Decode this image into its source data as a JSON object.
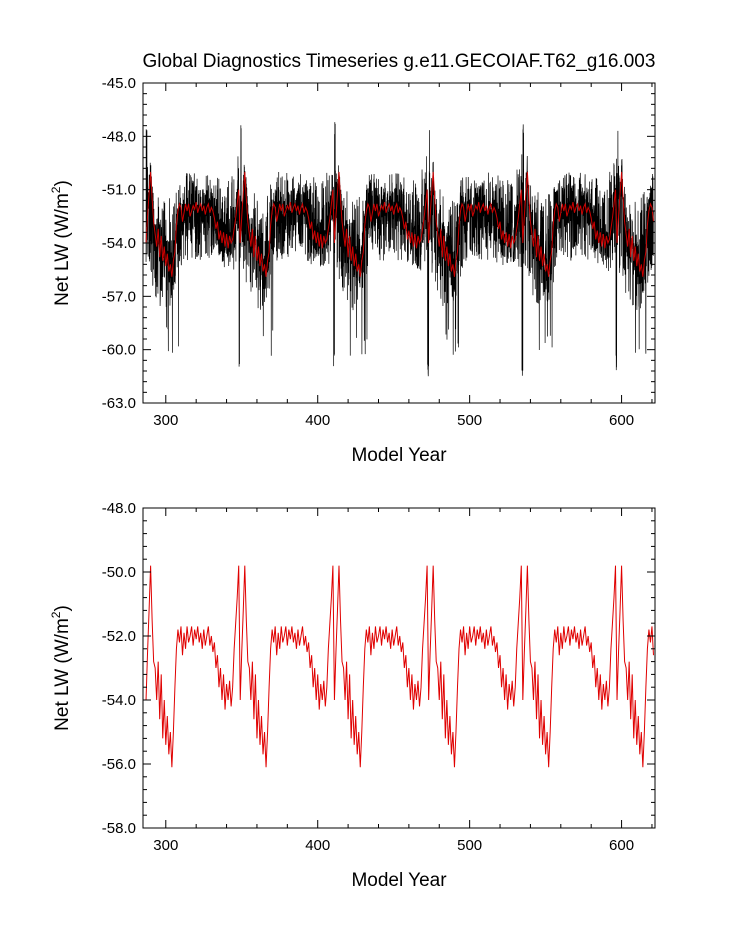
{
  "figure": {
    "title": "Global Diagnostics Timeseries g.e11.GECOIAF.T62_g16.003"
  },
  "chart_data": [
    {
      "type": "line",
      "xlabel": "Model Year",
      "ylabel_main": "Net LW (W/m",
      "ylabel_sup": "2",
      "ylabel_tail": ")",
      "xlim": [
        285,
        622
      ],
      "ylim": [
        -63.0,
        -45.0
      ],
      "xticks": [
        300,
        400,
        500,
        600
      ],
      "xtick_labels": [
        "300",
        "400",
        "500",
        "600"
      ],
      "yticks": [
        -63.0,
        -60.0,
        -57.0,
        -54.0,
        -51.0,
        -48.0,
        -45.0
      ],
      "ytick_labels": [
        "-63.0",
        "-60.0",
        "-57.0",
        "-54.0",
        "-51.0",
        "-48.0",
        "-45.0"
      ],
      "grid": false,
      "colors": {
        "monthly": "#000000",
        "annual": "#cc0000"
      },
      "cycle": {
        "start": 287,
        "length": 62,
        "end": 621
      },
      "monthly_envelope": {
        "note_values": [
          {
            "phase": 0,
            "low": -55.5,
            "high": -49.0
          },
          {
            "phase": 3,
            "low": -56.0,
            "high": -50.5
          },
          {
            "phase": 8,
            "low": -57.5,
            "high": -51.0
          },
          {
            "phase": 15,
            "low": -58.0,
            "high": -51.5
          },
          {
            "phase": 24,
            "low": -55.0,
            "high": -50.0
          },
          {
            "phase": 40,
            "low": -55.0,
            "high": -50.0
          },
          {
            "phase": 55,
            "low": -55.5,
            "high": -50.5
          },
          {
            "phase": 61,
            "low": -56.0,
            "high": -49.0
          }
        ]
      },
      "annual_profile": [
        [
          0,
          -54.0
        ],
        [
          1,
          -52.5
        ],
        [
          2,
          -51.2
        ],
        [
          3,
          -50.0
        ],
        [
          4,
          -51.5
        ],
        [
          5,
          -52.8
        ],
        [
          6,
          -53.5
        ],
        [
          7,
          -54.2
        ],
        [
          8,
          -53.2
        ],
        [
          9,
          -54.8
        ],
        [
          10,
          -53.6
        ],
        [
          11,
          -55.0
        ],
        [
          12,
          -54.2
        ],
        [
          13,
          -55.3
        ],
        [
          14,
          -54.6
        ],
        [
          15,
          -55.6
        ],
        [
          16,
          -55.2
        ],
        [
          17,
          -55.9
        ],
        [
          18,
          -55.0
        ],
        [
          19,
          -54.5
        ],
        [
          20,
          -53.0
        ],
        [
          21,
          -52.2
        ],
        [
          22,
          -51.8
        ],
        [
          23,
          -52.0
        ],
        [
          24,
          -52.8
        ],
        [
          25,
          -52.3
        ],
        [
          26,
          -51.8
        ],
        [
          27,
          -52.2
        ],
        [
          28,
          -51.8
        ],
        [
          29,
          -52.5
        ],
        [
          30,
          -52.2
        ],
        [
          31,
          -51.9
        ],
        [
          32,
          -52.1
        ],
        [
          33,
          -51.7
        ],
        [
          34,
          -52.3
        ],
        [
          35,
          -52.0
        ],
        [
          36,
          -51.8
        ],
        [
          37,
          -52.2
        ],
        [
          38,
          -51.9
        ],
        [
          39,
          -52.4
        ],
        [
          40,
          -52.0
        ],
        [
          41,
          -51.8
        ],
        [
          42,
          -52.3
        ],
        [
          43,
          -52.0
        ],
        [
          44,
          -52.2
        ],
        [
          45,
          -52.6
        ],
        [
          46,
          -53.2
        ],
        [
          47,
          -52.8
        ],
        [
          48,
          -53.8
        ],
        [
          49,
          -53.3
        ],
        [
          50,
          -54.0
        ],
        [
          51,
          -53.4
        ],
        [
          52,
          -54.2
        ],
        [
          53,
          -53.5
        ],
        [
          54,
          -54.3
        ],
        [
          55,
          -53.6
        ],
        [
          56,
          -54.0
        ],
        [
          57,
          -53.8
        ],
        [
          58,
          -53.2
        ],
        [
          59,
          -52.6
        ],
        [
          60,
          -51.8
        ],
        [
          61,
          -51.0
        ]
      ]
    },
    {
      "type": "line",
      "xlabel": "Model Year",
      "ylabel_main": "Net LW (W/m",
      "ylabel_sup": "2",
      "ylabel_tail": ")",
      "xlim": [
        285,
        622
      ],
      "ylim": [
        -58.0,
        -48.0
      ],
      "xticks": [
        300,
        400,
        500,
        600
      ],
      "xtick_labels": [
        "300",
        "400",
        "500",
        "600"
      ],
      "yticks": [
        -58.0,
        -56.0,
        -54.0,
        -52.0,
        -50.0,
        -48.0
      ],
      "ytick_labels": [
        "-58.0",
        "-56.0",
        "-54.0",
        "-52.0",
        "-50.0",
        "-48.0"
      ],
      "grid": false,
      "colors": {
        "annual": "#e00000"
      },
      "cycle": {
        "start": 287,
        "length": 62,
        "end": 621
      },
      "annual_profile": [
        [
          0,
          -54.0
        ],
        [
          1,
          -52.5
        ],
        [
          2,
          -51.2
        ],
        [
          3,
          -49.8
        ],
        [
          4,
          -51.5
        ],
        [
          5,
          -52.8
        ],
        [
          6,
          -53.0
        ],
        [
          7,
          -54.0
        ],
        [
          8,
          -52.8
        ],
        [
          9,
          -54.6
        ],
        [
          10,
          -53.2
        ],
        [
          11,
          -55.2
        ],
        [
          12,
          -54.0
        ],
        [
          13,
          -55.4
        ],
        [
          14,
          -54.5
        ],
        [
          15,
          -55.7
        ],
        [
          16,
          -55.0
        ],
        [
          17,
          -56.1
        ],
        [
          18,
          -55.0
        ],
        [
          19,
          -53.6
        ],
        [
          20,
          -52.4
        ],
        [
          21,
          -51.8
        ],
        [
          22,
          -52.2
        ],
        [
          23,
          -51.7
        ],
        [
          24,
          -52.6
        ],
        [
          25,
          -51.9
        ],
        [
          26,
          -52.4
        ],
        [
          27,
          -51.7
        ],
        [
          28,
          -52.2
        ],
        [
          29,
          -52.0
        ],
        [
          30,
          -51.7
        ],
        [
          31,
          -52.3
        ],
        [
          32,
          -51.8
        ],
        [
          33,
          -52.1
        ],
        [
          34,
          -51.7
        ],
        [
          35,
          -52.2
        ],
        [
          36,
          -51.9
        ],
        [
          37,
          -52.4
        ],
        [
          38,
          -51.8
        ],
        [
          39,
          -52.3
        ],
        [
          40,
          -52.0
        ],
        [
          41,
          -51.7
        ],
        [
          42,
          -52.3
        ],
        [
          43,
          -52.0
        ],
        [
          44,
          -52.5
        ],
        [
          45,
          -52.2
        ],
        [
          46,
          -53.0
        ],
        [
          47,
          -52.6
        ],
        [
          48,
          -53.6
        ],
        [
          49,
          -53.0
        ],
        [
          50,
          -54.0
        ],
        [
          51,
          -53.2
        ],
        [
          52,
          -54.3
        ],
        [
          53,
          -53.5
        ],
        [
          54,
          -54.0
        ],
        [
          55,
          -53.4
        ],
        [
          56,
          -54.2
        ],
        [
          57,
          -53.6
        ],
        [
          58,
          -52.4
        ],
        [
          59,
          -51.6
        ],
        [
          60,
          -50.8
        ],
        [
          61,
          -49.8
        ]
      ]
    }
  ]
}
